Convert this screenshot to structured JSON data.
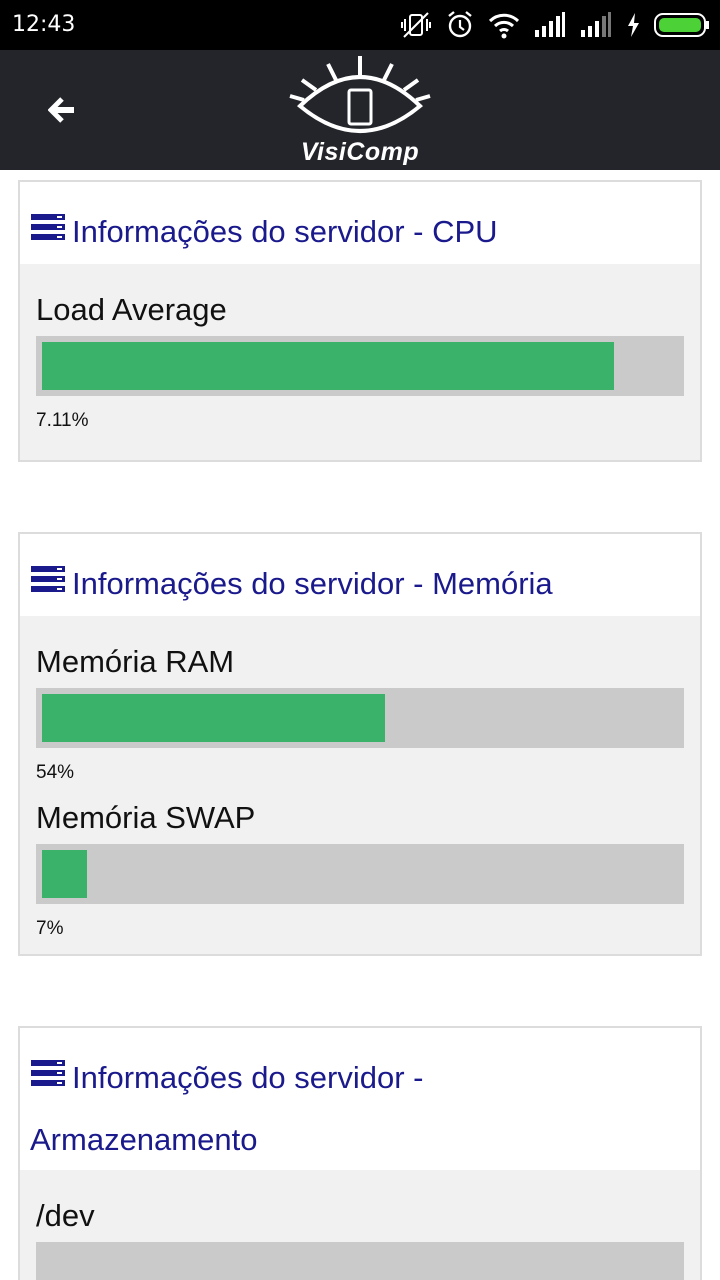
{
  "status_bar": {
    "time": "12:43",
    "icons": [
      "vibrate-off-icon",
      "alarm-icon",
      "wifi-icon",
      "signal-icon",
      "signal-icon",
      "charging-icon",
      "battery-icon"
    ]
  },
  "app_bar": {
    "logo_text": "VisiComp",
    "back_icon": "back-arrow-icon"
  },
  "colors": {
    "header_bg": "#23252b",
    "title_color": "#1a1a8c",
    "bar_fill": "#3bb26a",
    "bar_track": "#cacaca"
  },
  "cards": [
    {
      "title": "Informações do servidor - CPU",
      "metrics": [
        {
          "label": "Load Average",
          "value_text": "7.11%",
          "fill_fraction": 0.9
        }
      ]
    },
    {
      "title": "Informações do servidor - Memória",
      "metrics": [
        {
          "label": "Memória RAM",
          "value_text": "54%",
          "fill_fraction": 0.54
        },
        {
          "label": "Memória SWAP",
          "value_text": "7%",
          "fill_fraction": 0.07
        }
      ]
    },
    {
      "title_line1": "Informações do servidor -",
      "title_line2": "Armazenamento",
      "metrics": [
        {
          "label": "/dev",
          "value_text": "",
          "fill_fraction": 0
        }
      ]
    }
  ]
}
